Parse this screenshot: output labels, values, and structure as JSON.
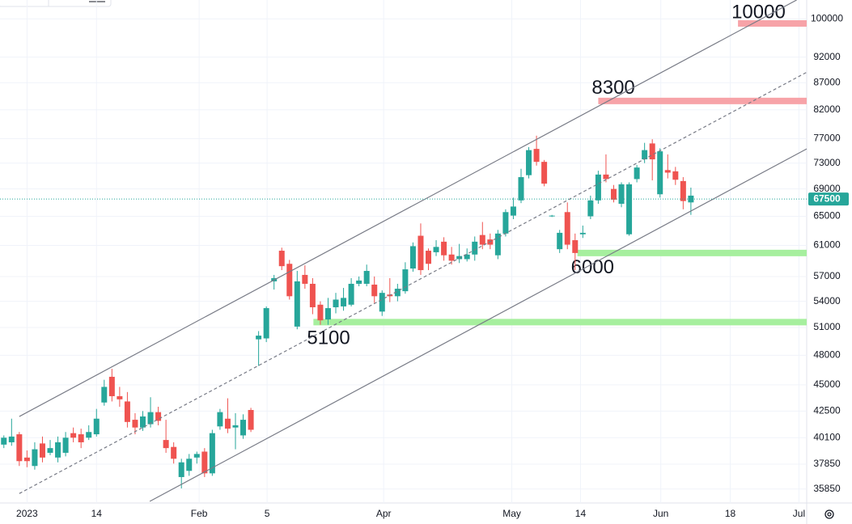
{
  "chart_data": {
    "type": "candlestick",
    "log": true,
    "grid": true,
    "up_color": "#26a69a",
    "down_color": "#ef5350",
    "ylim": [
      34900,
      104200
    ],
    "yticks": [
      100000,
      92000,
      87000,
      82000,
      77000,
      73000,
      69000,
      65000,
      61000,
      57000,
      54000,
      51000,
      48000,
      45000,
      42500,
      40100,
      37850,
      35850
    ],
    "xlim": [
      -0.5,
      104
    ],
    "xticks": [
      {
        "value": 3,
        "label": "2023"
      },
      {
        "value": 12,
        "label": "14"
      },
      {
        "value": 25.3,
        "label": "Feb"
      },
      {
        "value": 34.1,
        "label": "5"
      },
      {
        "value": 49.2,
        "label": "Apr"
      },
      {
        "value": 65.8,
        "label": "May"
      },
      {
        "value": 74.7,
        "label": "14"
      },
      {
        "value": 85.1,
        "label": "Jun"
      },
      {
        "value": 94.1,
        "label": "18"
      },
      {
        "value": 103,
        "label": "Jul"
      }
    ],
    "open": [
      39500,
      39700,
      40400,
      38400,
      37700,
      39600,
      38800,
      38400,
      38800,
      40500,
      40400,
      40100,
      40400,
      43300,
      45800,
      43900,
      43400,
      41700,
      41000,
      41300,
      42400,
      39900,
      39300,
      36800,
      37300,
      38400,
      38900,
      37100,
      41100,
      41800,
      41000,
      40300,
      42600,
      49700,
      49800,
      56400,
      60300,
      58600,
      51100,
      57200,
      56100,
      53600,
      51900,
      53300,
      53400,
      53600,
      56100,
      56100,
      56000,
      52800,
      54800,
      54600,
      55200,
      58000,
      62300,
      60300,
      60100,
      61500,
      59800,
      59200,
      59200,
      59800,
      62400,
      61800,
      59700,
      62600,
      65100,
      67300,
      71100,
      75300,
      73200,
      65000,
      60500,
      65600,
      61700,
      62500,
      65000,
      67300,
      71200,
      69000,
      66800,
      62500,
      70500,
      73600,
      76200,
      68200,
      71900,
      71700,
      70200,
      67000
    ],
    "high": [
      40300,
      41800,
      40600,
      39000,
      39700,
      40200,
      39900,
      40200,
      40600,
      41000,
      40900,
      41200,
      42700,
      45500,
      46600,
      44800,
      44300,
      42300,
      42500,
      43800,
      42900,
      41700,
      39700,
      38300,
      38700,
      38900,
      39200,
      40800,
      42700,
      43700,
      42300,
      42200,
      42800,
      50600,
      53400,
      57200,
      60700,
      59100,
      57700,
      58400,
      56800,
      54000,
      54400,
      55000,
      55600,
      56800,
      57000,
      58500,
      57000,
      55300,
      56800,
      56100,
      58800,
      61400,
      64000,
      60600,
      61700,
      62100,
      60800,
      61200,
      60600,
      62200,
      64200,
      62600,
      63100,
      66000,
      67700,
      72100,
      75600,
      77500,
      73500,
      65200,
      63100,
      67000,
      62600,
      63700,
      68000,
      71800,
      74400,
      69600,
      70000,
      70000,
      72700,
      76300,
      76900,
      75400,
      74400,
      72400,
      70800,
      69200
    ],
    "low": [
      39200,
      39400,
      37700,
      37600,
      37400,
      38000,
      38600,
      38000,
      38500,
      39700,
      39200,
      39900,
      40200,
      43000,
      43400,
      42900,
      41000,
      40400,
      40700,
      41000,
      41200,
      38800,
      37900,
      35900,
      36900,
      37900,
      36800,
      36900,
      40800,
      40500,
      39100,
      40000,
      40600,
      46900,
      49400,
      55400,
      57800,
      54200,
      50800,
      55500,
      52500,
      51300,
      51300,
      52600,
      52900,
      53400,
      55800,
      55800,
      53800,
      52300,
      53900,
      54000,
      54900,
      57600,
      57200,
      57800,
      59600,
      59000,
      58500,
      58700,
      58900,
      59000,
      60500,
      60500,
      59200,
      62200,
      64600,
      66900,
      70600,
      72600,
      69400,
      64900,
      60000,
      60500,
      57800,
      62000,
      64600,
      66800,
      70000,
      67000,
      66300,
      62300,
      70000,
      73000,
      70300,
      67700,
      70600,
      69600,
      66000,
      65200
    ],
    "close": [
      40100,
      40200,
      38100,
      38100,
      39100,
      38400,
      39200,
      39700,
      40100,
      40100,
      39700,
      40600,
      41800,
      44800,
      43900,
      43600,
      41500,
      41000,
      42000,
      42400,
      41600,
      39200,
      38300,
      38000,
      38300,
      38700,
      37100,
      40500,
      42400,
      40900,
      41200,
      41700,
      40800,
      50100,
      53200,
      56800,
      58300,
      54600,
      56400,
      56100,
      53300,
      51800,
      53200,
      54200,
      54400,
      56100,
      56500,
      57700,
      54600,
      55000,
      54600,
      55500,
      57900,
      60900,
      57800,
      58600,
      60800,
      59700,
      59000,
      59600,
      59800,
      61500,
      61100,
      61100,
      62600,
      65600,
      66400,
      70800,
      75100,
      73200,
      69800,
      65100,
      62700,
      61100,
      60000,
      62700,
      67300,
      71200,
      70500,
      67400,
      69700,
      69700,
      72300,
      75100,
      73600,
      74900,
      71500,
      70400,
      67200,
      68000
    ],
    "channel": [
      {
        "from": [
          2,
          42000
        ],
        "to": [
          102.7,
          104200
        ],
        "dashed": false
      },
      {
        "from": [
          2,
          35500
        ],
        "to": [
          104,
          89000
        ],
        "dashed": true
      },
      {
        "from": [
          18.9,
          34900
        ],
        "to": [
          104,
          75300
        ],
        "dashed": false
      }
    ],
    "zones": [
      {
        "label": "10000",
        "price": 99000,
        "start": 95.1,
        "color": "#f7a3a8"
      },
      {
        "label": "8300",
        "price": 83600,
        "start": 77,
        "color": "#f7a3a8"
      },
      {
        "label": "6000",
        "price": 60000,
        "start": 74.3,
        "color": "#a6ef9e"
      },
      {
        "label": "5100",
        "price": 51600,
        "start": 40.1,
        "color": "#a6ef9e"
      }
    ],
    "last_price": 67500,
    "last_color": "#26a69a"
  }
}
